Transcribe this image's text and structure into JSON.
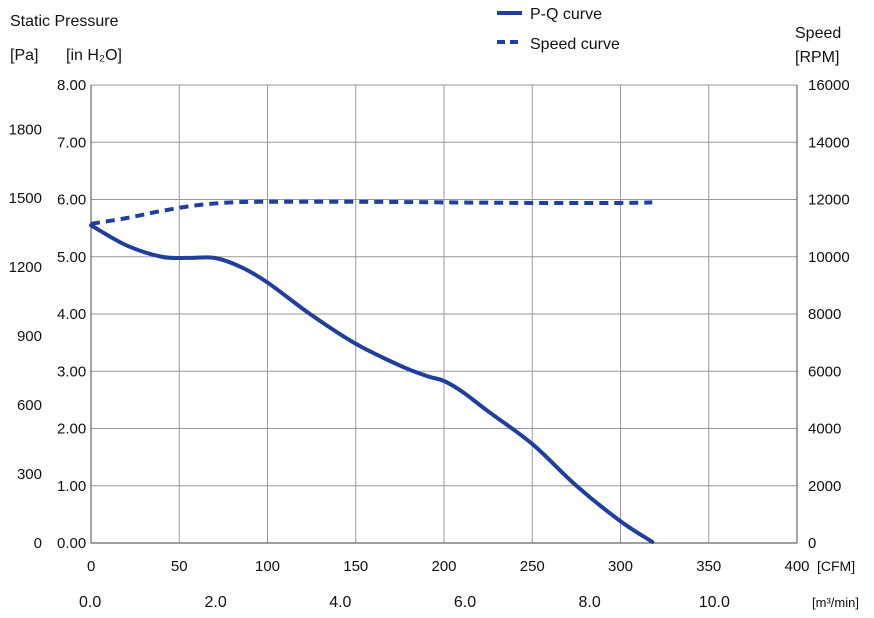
{
  "chart_data": {
    "type": "line",
    "y_left_title": "Static Pressure",
    "y_left_unit_pa": "[Pa]",
    "y_left_unit_inh2o": "[in H₂O]",
    "y_right_title": "Speed",
    "y_right_unit": "[RPM]",
    "x_unit_cfm": "[CFM]",
    "x_unit_m3min": "[m³/min]",
    "x_cfm_range": [
      0,
      400
    ],
    "x_cfm_ticks": [
      "0",
      "50",
      "100",
      "150",
      "200",
      "250",
      "300",
      "350",
      "400"
    ],
    "x_m3min_ticks": [
      "0.0",
      "2.0",
      "4.0",
      "6.0",
      "8.0",
      "10.0"
    ],
    "y_inh2o_range": [
      0,
      8
    ],
    "y_inh2o_ticks": [
      "0.00",
      "1.00",
      "2.00",
      "3.00",
      "4.00",
      "5.00",
      "6.00",
      "7.00",
      "8.00"
    ],
    "y_pa_ticks": [
      "0",
      "300",
      "600",
      "900",
      "1200",
      "1500",
      "1800"
    ],
    "y_rpm_range": [
      0,
      16000
    ],
    "y_rpm_ticks": [
      "0",
      "2000",
      "4000",
      "6000",
      "8000",
      "10000",
      "12000",
      "14000",
      "16000"
    ],
    "grid": true,
    "legend_position": "top-center",
    "series": [
      {
        "name": "P-Q curve",
        "axis": "left",
        "style": "solid",
        "color": "#1f3f9c",
        "x": [
          0,
          20,
          40,
          55,
          70,
          85,
          100,
          125,
          150,
          175,
          190,
          200,
          210,
          225,
          250,
          275,
          300,
          318
        ],
        "y": [
          5.55,
          5.2,
          5.0,
          4.98,
          4.98,
          4.82,
          4.55,
          3.98,
          3.48,
          3.1,
          2.92,
          2.83,
          2.65,
          2.3,
          1.73,
          1.0,
          0.38,
          0.02
        ]
      },
      {
        "name": "Speed curve",
        "axis": "right",
        "style": "dashed",
        "color": "#1f3f9c",
        "x": [
          0,
          20,
          40,
          60,
          80,
          100,
          150,
          200,
          250,
          300,
          318
        ],
        "y": [
          11150,
          11350,
          11600,
          11800,
          11900,
          11920,
          11920,
          11900,
          11880,
          11880,
          11900
        ]
      }
    ]
  }
}
